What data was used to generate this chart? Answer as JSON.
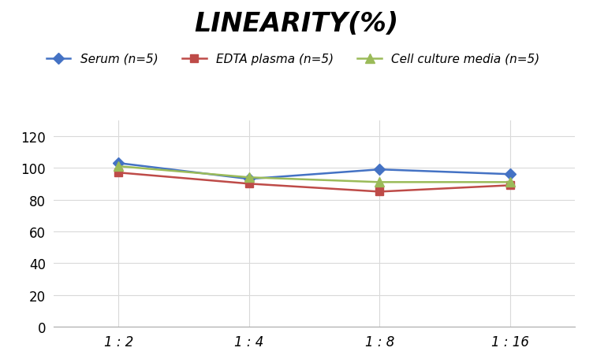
{
  "title": "LINEARITY(%)",
  "x_labels": [
    "1 : 2",
    "1 : 4",
    "1 : 8",
    "1 : 16"
  ],
  "x_positions": [
    0,
    1,
    2,
    3
  ],
  "series": [
    {
      "label": "Serum (n=5)",
      "values": [
        103,
        93,
        99,
        96
      ],
      "color": "#4472C4",
      "marker": "D",
      "markersize": 7,
      "linewidth": 1.8
    },
    {
      "label": "EDTA plasma (n=5)",
      "values": [
        97,
        90,
        85,
        89
      ],
      "color": "#BE4B48",
      "marker": "s",
      "markersize": 7,
      "linewidth": 1.8
    },
    {
      "label": "Cell culture media (n=5)",
      "values": [
        101,
        94,
        91,
        91
      ],
      "color": "#9BBB59",
      "marker": "^",
      "markersize": 8,
      "linewidth": 1.8
    }
  ],
  "ylim": [
    0,
    130
  ],
  "yticks": [
    0,
    20,
    40,
    60,
    80,
    100,
    120
  ],
  "grid_color": "#D9D9D9",
  "background_color": "#FFFFFF",
  "title_fontsize": 24,
  "legend_fontsize": 11,
  "tick_fontsize": 12
}
